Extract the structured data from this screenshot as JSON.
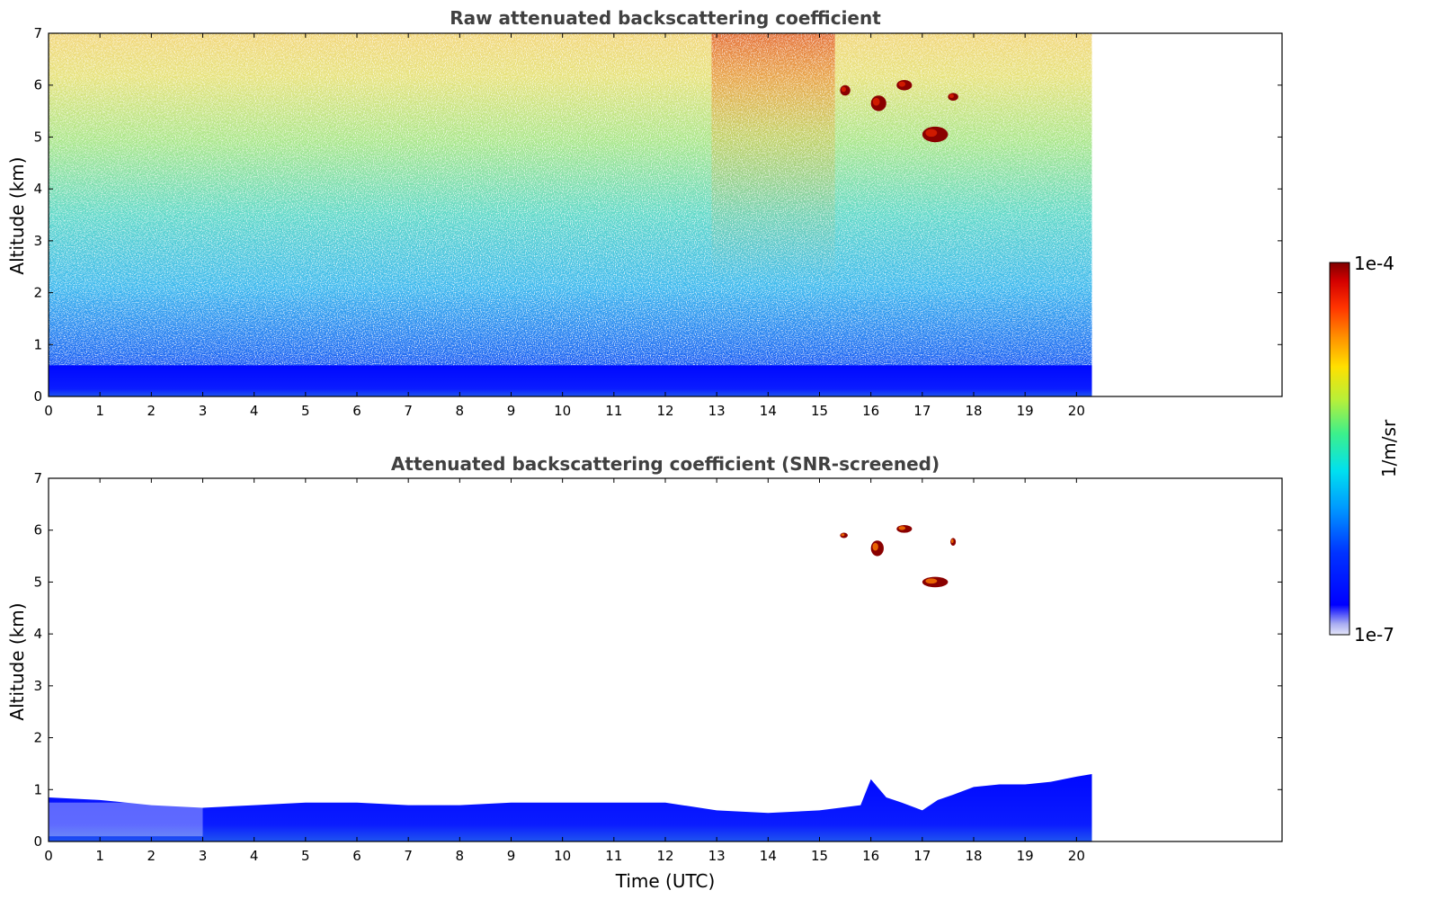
{
  "chart_data": [
    {
      "type": "heatmap",
      "title": "Raw attenuated backscattering coefficient",
      "xlabel": "",
      "ylabel": "Altitude (km)",
      "xlim": [
        0,
        24
      ],
      "ylim": [
        0,
        7
      ],
      "data_extent_x": [
        0,
        20.3
      ],
      "x_ticks": [
        0,
        1,
        2,
        3,
        4,
        5,
        6,
        7,
        8,
        9,
        10,
        11,
        12,
        13,
        14,
        15,
        16,
        17,
        18,
        19,
        20
      ],
      "y_ticks": [
        0,
        1,
        2,
        3,
        4,
        5,
        6,
        7
      ],
      "colorscale": "jet",
      "log_scale": true,
      "features": [
        {
          "kind": "boundary-layer",
          "x": [
            0,
            20.3
          ],
          "y_top": 0.6,
          "level": "high"
        },
        {
          "kind": "noise-gradient",
          "x": [
            0,
            20.3
          ],
          "y": [
            0.6,
            7
          ],
          "level": "increasing with altitude"
        },
        {
          "kind": "cloud",
          "x": [
            15.4,
            15.6
          ],
          "y": [
            5.8,
            6.0
          ],
          "level": "1e-4"
        },
        {
          "kind": "cloud",
          "x": [
            16.0,
            16.3
          ],
          "y": [
            5.5,
            5.8
          ],
          "level": "1e-4"
        },
        {
          "kind": "cloud",
          "x": [
            16.5,
            16.8
          ],
          "y": [
            5.9,
            6.1
          ],
          "level": "1e-4"
        },
        {
          "kind": "cloud",
          "x": [
            17.0,
            17.5
          ],
          "y": [
            4.9,
            5.2
          ],
          "level": "1e-4"
        },
        {
          "kind": "cloud",
          "x": [
            17.5,
            17.7
          ],
          "y": [
            5.7,
            5.85
          ],
          "level": "1e-4"
        }
      ]
    },
    {
      "type": "heatmap",
      "title": "Attenuated backscattering coefficient (SNR-screened)",
      "xlabel": "Time (UTC)",
      "ylabel": "Altitude (km)",
      "xlim": [
        0,
        24
      ],
      "ylim": [
        0,
        7
      ],
      "data_extent_x": [
        0,
        20.3
      ],
      "x_ticks": [
        0,
        1,
        2,
        3,
        4,
        5,
        6,
        7,
        8,
        9,
        10,
        11,
        12,
        13,
        14,
        15,
        16,
        17,
        18,
        19,
        20
      ],
      "y_ticks": [
        0,
        1,
        2,
        3,
        4,
        5,
        6,
        7
      ],
      "colorscale": "jet",
      "log_scale": true,
      "boundary_layer_top_km": {
        "t": [
          0,
          1,
          2,
          3,
          4,
          5,
          6,
          7,
          8,
          9,
          10,
          11,
          12,
          13,
          14,
          15,
          15.8,
          16,
          16.3,
          16.6,
          17,
          17.3,
          17.6,
          18,
          18.5,
          19,
          19.5,
          20,
          20.3
        ],
        "top": [
          0.85,
          0.8,
          0.7,
          0.65,
          0.7,
          0.75,
          0.75,
          0.7,
          0.7,
          0.75,
          0.75,
          0.75,
          0.75,
          0.6,
          0.55,
          0.6,
          0.7,
          1.2,
          0.85,
          0.75,
          0.6,
          0.8,
          0.9,
          1.05,
          1.1,
          1.1,
          1.15,
          1.25,
          1.3
        ]
      },
      "features": [
        {
          "kind": "cloud",
          "x": [
            15.4,
            15.55
          ],
          "y": [
            5.85,
            5.95
          ],
          "level": "1e-4"
        },
        {
          "kind": "cloud",
          "x": [
            16.0,
            16.25
          ],
          "y": [
            5.5,
            5.8
          ],
          "level": "1e-4"
        },
        {
          "kind": "cloud",
          "x": [
            16.5,
            16.8
          ],
          "y": [
            5.95,
            6.1
          ],
          "level": "1e-4"
        },
        {
          "kind": "cloud",
          "x": [
            17.0,
            17.5
          ],
          "y": [
            4.9,
            5.1
          ],
          "level": "1e-4"
        },
        {
          "kind": "cloud",
          "x": [
            17.55,
            17.65
          ],
          "y": [
            5.7,
            5.85
          ],
          "level": "1e-4"
        }
      ]
    }
  ],
  "colorbar": {
    "max_label": "1e-4",
    "min_label": "1e-7",
    "unit_label": "1/m/sr",
    "colorscale": "jet",
    "low_end_tint": "#dde2f7"
  }
}
